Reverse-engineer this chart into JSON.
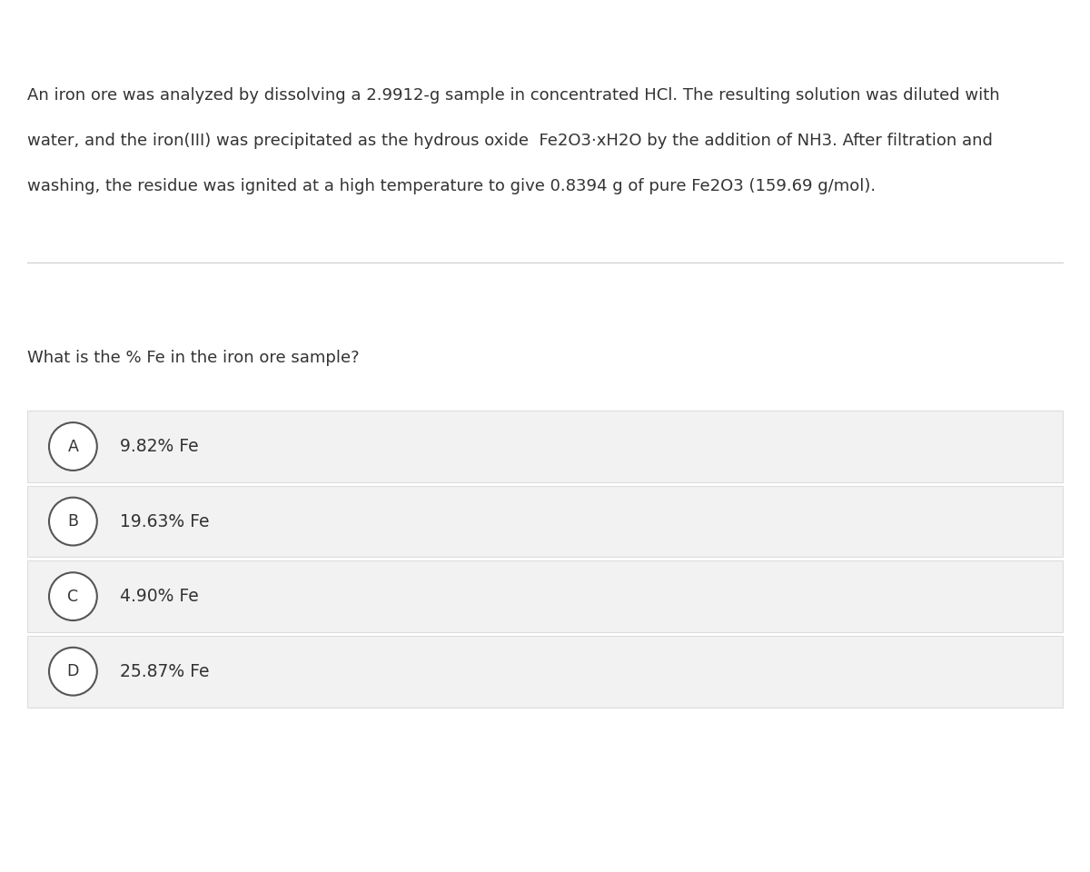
{
  "background_color": "#ffffff",
  "paragraph_line1": "An iron ore was analyzed by dissolving a 2.9912-g sample in concentrated HCl. The resulting solution was diluted with",
  "paragraph_line2": "water, and the iron(III) was precipitated as the hydrous oxide  Fe2O3·xH2O by the addition of NH3. After filtration and",
  "paragraph_line3": "washing, the residue was ignited at a high temperature to give 0.8394 g of pure Fe2O3 (159.69 g/mol).",
  "question_text": "What is the % Fe in the iron ore sample?",
  "choices": [
    {
      "label": "A",
      "text": "9.82% Fe"
    },
    {
      "label": "B",
      "text": "19.63% Fe"
    },
    {
      "label": "C",
      "text": "4.90% Fe"
    },
    {
      "label": "D",
      "text": "25.87% Fe"
    }
  ],
  "choice_bg_color": "#f2f2f2",
  "choice_border_color": "#dddddd",
  "label_circle_color": "#ffffff",
  "label_circle_border_color": "#555555",
  "text_color": "#333333",
  "separator_color": "#cccccc",
  "paragraph_fontsize": 13.0,
  "question_fontsize": 13.0,
  "choice_fontsize": 13.5,
  "label_fontsize": 12.5
}
